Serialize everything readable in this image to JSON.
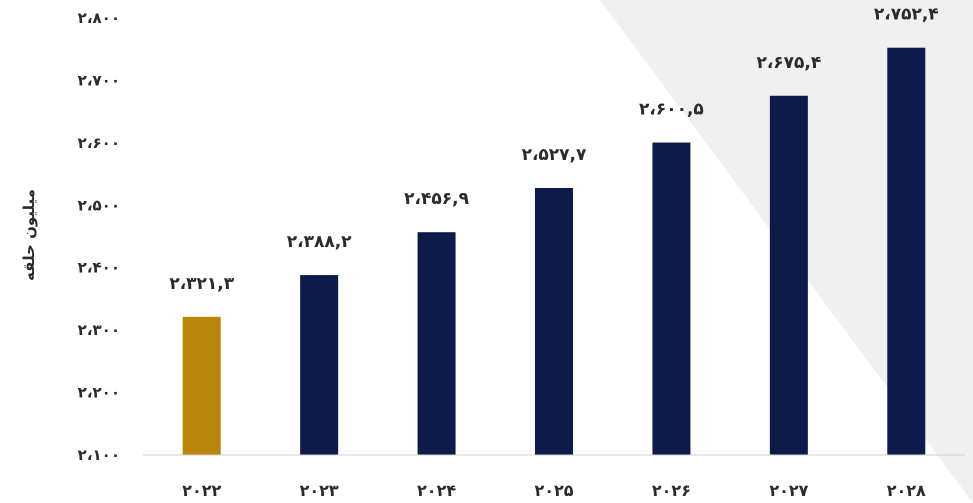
{
  "chart_data": {
    "type": "bar",
    "title": "",
    "xlabel": "",
    "ylabel": "میلیون حلقه",
    "categories": [
      "۲۰۲۲",
      "۲۰۲۳",
      "۲۰۲۴",
      "۲۰۲۵",
      "۲۰۲۶",
      "۲۰۲۷",
      "۲۰۲۸"
    ],
    "values": [
      2321.3,
      2388.2,
      2456.9,
      2527.7,
      2600.5,
      2675.4,
      2752.4
    ],
    "value_labels": [
      "۲،۳۲۱,۳",
      "۲،۳۸۸,۲",
      "۲،۴۵۶,۹",
      "۲،۵۲۷,۷",
      "۲،۶۰۰,۵",
      "۲،۶۷۵,۴",
      "۲،۷۵۲,۴"
    ],
    "bar_colors": [
      "#B8860B",
      "#0D1B4B",
      "#0D1B4B",
      "#0D1B4B",
      "#0D1B4B",
      "#0D1B4B",
      "#0D1B4B"
    ],
    "ylim": [
      2100,
      2800
    ],
    "yticks": [
      2100,
      2200,
      2300,
      2400,
      2500,
      2600,
      2700,
      2800
    ],
    "ytick_labels": [
      "۲،۱۰۰",
      "۲،۲۰۰",
      "۲،۳۰۰",
      "۲،۴۰۰",
      "۲،۵۰۰",
      "۲،۶۰۰",
      "۲،۷۰۰",
      "۲،۸۰۰"
    ],
    "grid": false,
    "legend": "none"
  },
  "colors": {
    "highlight": "#B8860B",
    "primary": "#0D1B4B",
    "background_wedge": "#F0F0F0",
    "axis": "#D0D0D0"
  }
}
